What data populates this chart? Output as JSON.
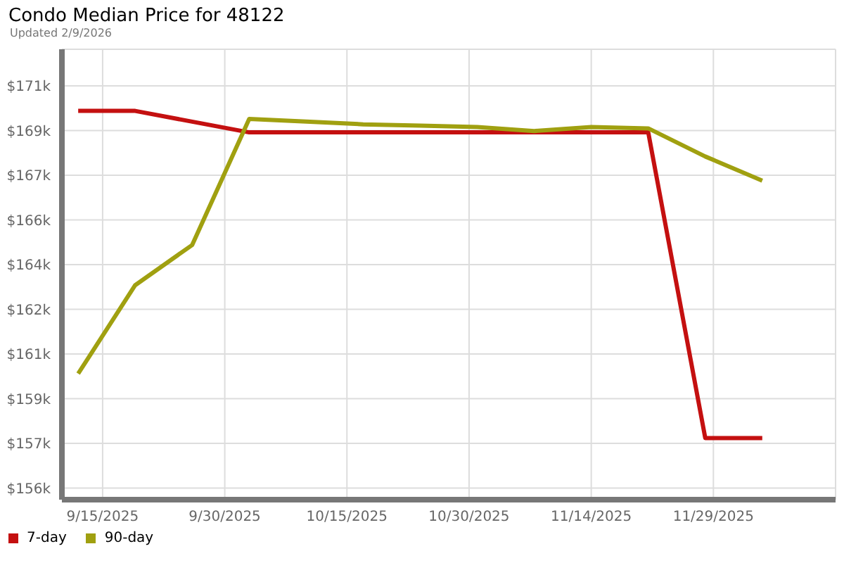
{
  "chart_data": {
    "type": "line",
    "title": "Condo Median Price for 48122",
    "subtitle": "Updated 2/9/2026",
    "x": [
      "2025-09-12",
      "2025-09-19",
      "2025-09-26",
      "2025-10-03",
      "2025-10-10",
      "2025-10-17",
      "2025-10-24",
      "2025-10-31",
      "2025-11-07",
      "2025-11-14",
      "2025-11-21",
      "2025-11-28",
      "2025-12-05"
    ],
    "series": [
      {
        "name": "7-day",
        "color": "#c41010",
        "values": [
          169900,
          169900,
          169500,
          169100,
          169100,
          169100,
          169100,
          169100,
          169100,
          169100,
          169100,
          157700,
          157700
        ]
      },
      {
        "name": "90-day",
        "color": "#a0a010",
        "values": [
          160100,
          163400,
          164900,
          169600,
          169500,
          169400,
          169350,
          169300,
          169150,
          169300,
          169250,
          168200,
          167300
        ]
      }
    ],
    "xlim": [
      "2025-09-10",
      "2025-12-14"
    ],
    "xticks": [
      {
        "value": "2025-09-15",
        "label": "9/15/2025"
      },
      {
        "value": "2025-09-30",
        "label": "9/30/2025"
      },
      {
        "value": "2025-10-15",
        "label": "10/15/2025"
      },
      {
        "value": "2025-10-30",
        "label": "10/30/2025"
      },
      {
        "value": "2025-11-14",
        "label": "11/14/2025"
      },
      {
        "value": "2025-11-29",
        "label": "11/29/2025"
      }
    ],
    "ylim": [
      155400,
      172200
    ],
    "yticks": [
      {
        "value": 155833,
        "label": "$156k"
      },
      {
        "value": 157500,
        "label": "$157k"
      },
      {
        "value": 159167,
        "label": "$159k"
      },
      {
        "value": 160833,
        "label": "$161k"
      },
      {
        "value": 162500,
        "label": "$162k"
      },
      {
        "value": 164167,
        "label": "$164k"
      },
      {
        "value": 165833,
        "label": "$166k"
      },
      {
        "value": 167500,
        "label": "$167k"
      },
      {
        "value": 169167,
        "label": "$169k"
      },
      {
        "value": 170833,
        "label": "$171k"
      }
    ],
    "grid": true,
    "legend": "bottom left",
    "marker": "none",
    "line_style": "solid"
  }
}
